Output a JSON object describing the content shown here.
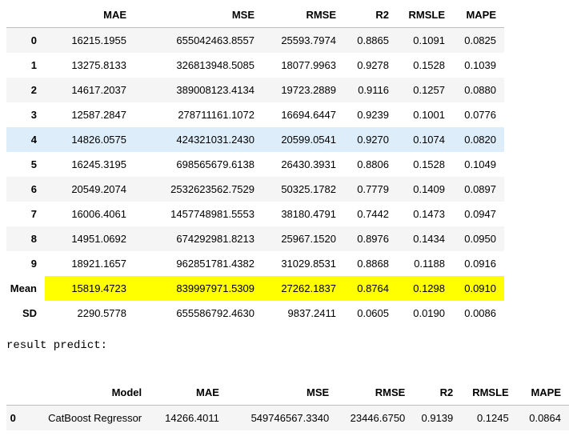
{
  "metrics_table": {
    "columns": [
      "",
      "MAE",
      "MSE",
      "RMSE",
      "R2",
      "RMSLE",
      "MAPE"
    ],
    "rows": [
      {
        "index": "0",
        "mae": "16215.1955",
        "mse": "655042463.8557",
        "rmse": "25593.7974",
        "r2": "0.8865",
        "rmsle": "0.1091",
        "mape": "0.0825"
      },
      {
        "index": "1",
        "mae": "13275.8133",
        "mse": "326813948.5085",
        "rmse": "18077.9963",
        "r2": "0.9278",
        "rmsle": "0.1528",
        "mape": "0.1039"
      },
      {
        "index": "2",
        "mae": "14617.2037",
        "mse": "389008123.4134",
        "rmse": "19723.2889",
        "r2": "0.9116",
        "rmsle": "0.1257",
        "mape": "0.0880"
      },
      {
        "index": "3",
        "mae": "12587.2847",
        "mse": "278711161.1072",
        "rmse": "16694.6447",
        "r2": "0.9239",
        "rmsle": "0.1001",
        "mape": "0.0776"
      },
      {
        "index": "4",
        "mae": "14826.0575",
        "mse": "424321031.2430",
        "rmse": "20599.0541",
        "r2": "0.9270",
        "rmsle": "0.1074",
        "mape": "0.0820"
      },
      {
        "index": "5",
        "mae": "16245.3195",
        "mse": "698565679.6138",
        "rmse": "26430.3931",
        "r2": "0.8806",
        "rmsle": "0.1528",
        "mape": "0.1049"
      },
      {
        "index": "6",
        "mae": "20549.2074",
        "mse": "2532623562.7529",
        "rmse": "50325.1782",
        "r2": "0.7779",
        "rmsle": "0.1409",
        "mape": "0.0897"
      },
      {
        "index": "7",
        "mae": "16006.4061",
        "mse": "1457748981.5553",
        "rmse": "38180.4791",
        "r2": "0.7442",
        "rmsle": "0.1473",
        "mape": "0.0947"
      },
      {
        "index": "8",
        "mae": "14951.0692",
        "mse": "674292981.8213",
        "rmse": "25967.1520",
        "r2": "0.8976",
        "rmsle": "0.1434",
        "mape": "0.0950"
      },
      {
        "index": "9",
        "mae": "18921.1657",
        "mse": "962851781.4382",
        "rmse": "31029.8531",
        "r2": "0.8868",
        "rmsle": "0.1188",
        "mape": "0.0916"
      },
      {
        "index": "Mean",
        "mae": "15819.4723",
        "mse": "839997971.5309",
        "rmse": "27262.1837",
        "r2": "0.8764",
        "rmsle": "0.1298",
        "mape": "0.0910"
      },
      {
        "index": "SD",
        "mae": "2290.5778",
        "mse": "655586792.4630",
        "rmse": "9837.2411",
        "r2": "0.0605",
        "rmsle": "0.0190",
        "mape": "0.0086"
      }
    ],
    "highlight_color": "#ffff00",
    "hover_row_color": "#ddeefa"
  },
  "stdout_text": "result predict:",
  "predict_table": {
    "columns": [
      "",
      "Model",
      "MAE",
      "MSE",
      "RMSE",
      "R2",
      "RMSLE",
      "MAPE"
    ],
    "rows": [
      {
        "index": "0",
        "model": "CatBoost Regressor",
        "mae": "14266.4011",
        "mse": "549746567.3340",
        "rmse": "23446.6750",
        "r2": "0.9139",
        "rmsle": "0.1245",
        "mape": "0.0864"
      }
    ]
  }
}
